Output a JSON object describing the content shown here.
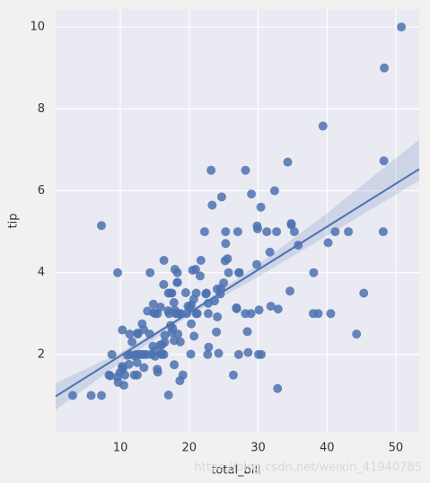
{
  "chart_data": {
    "type": "scatter",
    "xlabel": "total_bill",
    "ylabel": "tip",
    "watermark": "https://blog.csdn.net/weixin_41940785",
    "color": "#4c72b0",
    "grid": true,
    "xlim": [
      0.6,
      53.4
    ],
    "ylim": [
      0.09,
      10.44
    ],
    "xticks": [
      10,
      20,
      30,
      40,
      50
    ],
    "yticks": [
      2,
      4,
      6,
      8,
      10
    ],
    "x": [
      16.99,
      10.34,
      21.01,
      23.68,
      24.59,
      25.29,
      8.77,
      26.88,
      15.04,
      14.78,
      10.27,
      35.26,
      15.42,
      18.43,
      14.83,
      21.58,
      10.33,
      16.29,
      16.97,
      20.65,
      17.92,
      20.29,
      15.77,
      39.42,
      19.82,
      17.81,
      13.37,
      12.69,
      21.7,
      19.65,
      9.55,
      18.35,
      15.06,
      20.69,
      17.78,
      24.06,
      16.31,
      16.93,
      18.69,
      31.27,
      16.04,
      17.46,
      13.94,
      9.68,
      30.4,
      18.29,
      22.23,
      32.4,
      28.55,
      18.04,
      12.54,
      10.29,
      34.81,
      9.94,
      25.56,
      19.49,
      38.01,
      26.41,
      11.24,
      48.27,
      20.29,
      13.81,
      11.02,
      18.29,
      17.59,
      20.08,
      16.45,
      3.07,
      20.23,
      15.01,
      12.02,
      17.07,
      26.86,
      25.28,
      14.73,
      10.51,
      17.92,
      27.2,
      22.76,
      17.29,
      32.68,
      15.98,
      34.83,
      13.03,
      18.28,
      24.71,
      21.16,
      28.97,
      22.49,
      5.75,
      16.32,
      22.75,
      40.17,
      27.28,
      12.03,
      21.01,
      12.46,
      11.35,
      15.38,
      44.3,
      22.42,
      20.92,
      15.36,
      20.49,
      25.21,
      18.24,
      14.31,
      7.25,
      38.07,
      23.95,
      25.71,
      17.31,
      29.93,
      10.65,
      12.43,
      24.08,
      29.8,
      8.52,
      22.82,
      19.08,
      34.3,
      41.19,
      27.05,
      16.43,
      8.35,
      18.64,
      29.85,
      48.17,
      25.0,
      13.39,
      24.52,
      31.71,
      50.81,
      15.81,
      7.25,
      31.85,
      32.9,
      9.6,
      34.63,
      23.33,
      45.35,
      23.17,
      40.55,
      30.46,
      28.44,
      43.11,
      38.73,
      24.27,
      30.06,
      48.33,
      28.17,
      28.15,
      30.14,
      32.83,
      35.83,
      29.03,
      27.18,
      22.67,
      17.82,
      18.78,
      13.42,
      14.26,
      15.95,
      12.48,
      11.69,
      14.52,
      11.38,
      12.26,
      13.16,
      17.47
    ],
    "values": [
      1.01,
      1.66,
      3.5,
      3.31,
      3.61,
      4.71,
      2,
      3.12,
      1.96,
      3.23,
      1.71,
      5,
      1.57,
      3,
      3.02,
      3.92,
      1.67,
      3.71,
      3.5,
      3.35,
      4.08,
      2.75,
      2.23,
      7.58,
      3.18,
      2.34,
      2,
      2,
      4.3,
      3,
      1.45,
      2.5,
      3,
      2.45,
      3.27,
      3.6,
      2,
      3.07,
      2.31,
      5,
      2.24,
      2.54,
      3.06,
      1.32,
      5.6,
      3,
      5,
      6,
      2.05,
      3,
      2.5,
      2.6,
      5.2,
      1.56,
      4.34,
      3.51,
      3,
      1.5,
      1.76,
      6.73,
      3.21,
      2,
      1.98,
      3.76,
      2.64,
      3.15,
      2.47,
      1,
      2.01,
      2.09,
      1.97,
      3,
      3.14,
      5,
      2.2,
      1.25,
      3.08,
      4,
      3,
      2.71,
      5,
      2.03,
      5.17,
      2,
      4,
      5.85,
      3,
      3,
      3.5,
      1,
      4.3,
      3.25,
      4.73,
      4,
      1.5,
      3,
      1.5,
      2.5,
      3,
      2.5,
      3.48,
      4.08,
      1.64,
      4.06,
      4.29,
      3.76,
      4,
      1,
      4,
      2.55,
      4,
      3.5,
      5.07,
      1.5,
      1.8,
      2.92,
      4.2,
      1.48,
      2.18,
      1.5,
      6.7,
      5,
      5,
      2.3,
      1.5,
      1.36,
      5.14,
      5,
      3.75,
      2.61,
      3.48,
      4.5,
      10,
      3.16,
      5.15,
      3.18,
      3.11,
      4,
      3.55,
      5.65,
      3.5,
      6.5,
      3,
      2,
      2.56,
      5,
      3,
      2.03,
      2,
      9,
      6.5,
      3,
      3.09,
      1.17,
      4.67,
      5.92,
      2,
      2,
      1.75,
      3,
      1.68,
      2.5,
      2,
      2.52,
      2.31,
      2,
      2,
      2,
      2.75,
      3.5
    ],
    "fit": {
      "x": [
        0.6,
        10,
        20,
        30,
        40,
        53.4
      ],
      "values": [
        0.98,
        1.97,
        3.02,
        4.07,
        5.12,
        6.53
      ],
      "lower": [
        0.65,
        1.8,
        2.95,
        3.9,
        4.9,
        6.25
      ],
      "upper": [
        1.3,
        2.05,
        3.05,
        4.2,
        5.45,
        7.25
      ]
    }
  }
}
